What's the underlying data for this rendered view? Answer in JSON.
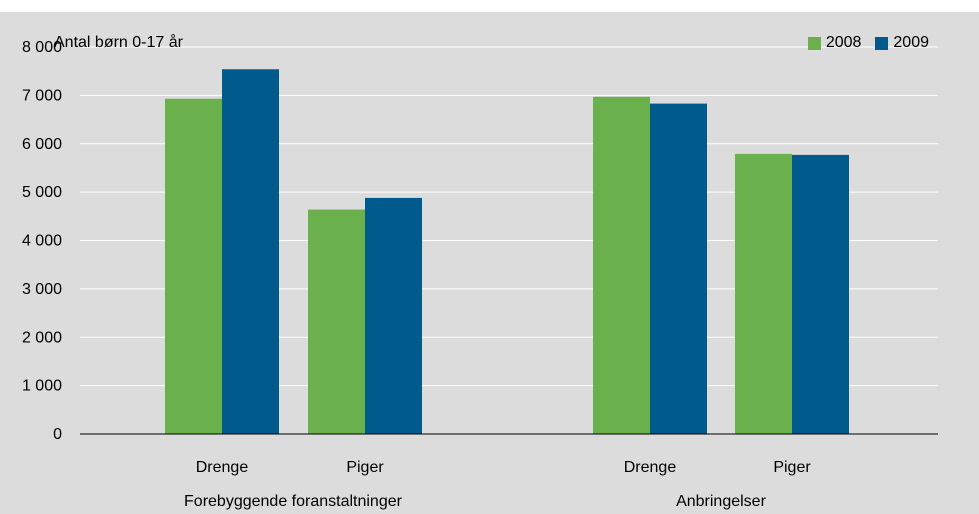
{
  "colors": {
    "2008": "#6ab04c",
    "2009": "#005b8c",
    "panel": "#dcdcdc",
    "grid": "#ffffff",
    "axis": "#000000"
  },
  "chart_data": {
    "type": "bar",
    "ylabel": "Antal børn 0-17 år",
    "ylim": [
      0,
      8000
    ],
    "ytick_values": [
      0,
      1000,
      2000,
      3000,
      4000,
      5000,
      6000,
      7000,
      8000
    ],
    "ytick_labels": [
      "0",
      "1 000",
      "2 000",
      "3 000",
      "4 000",
      "5 000",
      "6 000",
      "7 000",
      "8 000"
    ],
    "grid": true,
    "legend_position": "top-right",
    "groups": [
      {
        "label": "Forebyggende foranstaltninger",
        "categories": [
          "Drenge",
          "Piger"
        ]
      },
      {
        "label": "Anbringelser",
        "categories": [
          "Drenge",
          "Piger"
        ]
      }
    ],
    "categories": [
      "Drenge",
      "Piger",
      "Drenge",
      "Piger"
    ],
    "series": [
      {
        "name": "2008",
        "values": [
          6930,
          4640,
          6970,
          5790
        ]
      },
      {
        "name": "2009",
        "values": [
          7540,
          4880,
          6830,
          5770
        ]
      }
    ]
  }
}
